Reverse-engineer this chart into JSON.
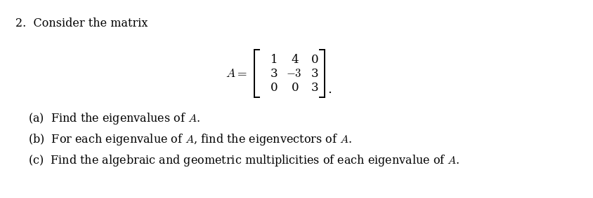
{
  "background_color": "#ffffff",
  "fig_width": 8.44,
  "fig_height": 2.83,
  "text_color": "#000000",
  "main_fontsize": 11.5,
  "parts_fontsize": 11.5
}
